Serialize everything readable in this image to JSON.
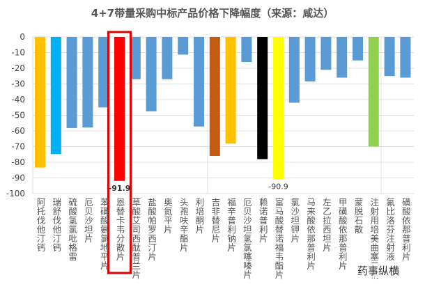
{
  "chart_data": {
    "type": "bar",
    "title": "4+7带量采购中标产品价格下降幅度（来源：咸达）",
    "xlabel": "",
    "ylabel": "",
    "ylim": [
      -100,
      0
    ],
    "yticks": [
      0,
      -10,
      -20,
      -30,
      -40,
      -50,
      -60,
      -70,
      -80,
      -90,
      -100
    ],
    "grid": true,
    "categories": [
      "阿托伐他汀钙",
      "瑞舒伐他汀钙",
      "硫酸氢氯吡格雷",
      "厄贝沙坦片",
      "苯磺酸氨氯地平片",
      "恩替卡韦分散片",
      "草酸艾司西酞普兰片",
      "盐酸帕罗西汀片",
      "奥氮平片",
      "头孢呋辛酯片",
      "利培酮片",
      "吉非替尼片",
      "福辛普利钠片",
      "厄贝沙坦氢氯噻嗪片",
      "赖诺普利片",
      "富马酸替诺福韦酯片",
      "氯沙坦钾片",
      "马来酸依那普利片",
      "左乙拉西坦片",
      "甲磺酸依那普利片",
      "蒙脱石散",
      "注射用培美曲塞二钠",
      "氟比洛芬注射液",
      "磺酸依那普利片"
    ],
    "values": [
      -83.4,
      -74.8,
      -58.2,
      -57.8,
      -45,
      -91.9,
      -27,
      -47.5,
      -27,
      -11.3,
      -57.2,
      -76,
      -68.1,
      -16,
      -78,
      -90.9,
      -42,
      -28.4,
      -21,
      -26,
      -15,
      -70,
      -25,
      -26
    ],
    "colors": [
      "#FFC000",
      "#00B0F0",
      "#5B9BD5",
      "#5B9BD5",
      "#5B9BD5",
      "#FF0000",
      "#5B9BD5",
      "#5B9BD5",
      "#5B9BD5",
      "#5B9BD5",
      "#5B9BD5",
      "#C55A11",
      "#FFC000",
      "#5B9BD5",
      "#000000",
      "#FFFF00",
      "#5B9BD5",
      "#5B9BD5",
      "#5B9BD5",
      "#5B9BD5",
      "#5B9BD5",
      "#92D050",
      "#5B9BD5",
      "#5B9BD5"
    ],
    "data_labels": [
      {
        "index": 5,
        "text": "-91.9"
      },
      {
        "index": 15,
        "text": "-90.9"
      }
    ],
    "highlight_index": 5,
    "highlight_color": "#E00000"
  },
  "watermark": "药事纵横"
}
